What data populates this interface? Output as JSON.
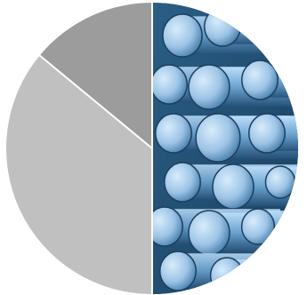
{
  "chart_data": {
    "type": "pie",
    "title": "",
    "categories": [
      "",
      "",
      ""
    ],
    "values": [
      50,
      36,
      14
    ],
    "colors": [
      "#2f6b96",
      "#c0c0c0",
      "#9c9c9c"
    ],
    "legend": "none",
    "notes": ""
  }
}
